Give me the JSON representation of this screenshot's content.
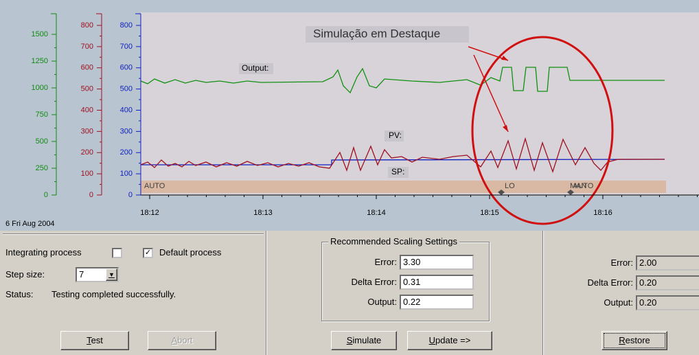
{
  "chart": {
    "title": "Simulação em Destaque",
    "date": "6 Fri Aug 2004",
    "axes": [
      {
        "color": "#108a10",
        "ticks": [
          0,
          250,
          500,
          750,
          1000,
          1250,
          1500
        ],
        "max": 1500
      },
      {
        "color": "#a01020",
        "ticks": [
          0,
          100,
          200,
          300,
          400,
          500,
          600,
          700,
          800
        ],
        "max": 800
      },
      {
        "color": "#1020c0",
        "ticks": [
          0,
          100,
          200,
          300,
          400,
          500,
          600,
          700,
          800
        ],
        "max": 800
      }
    ],
    "time_labels": [
      "18:12",
      "18:13",
      "18:14",
      "18:15",
      "18:16"
    ],
    "trace_labels": {
      "output": "Output:",
      "pv": "PV:",
      "sp": "SP:"
    },
    "modes": [
      "AUTO",
      "LO",
      "MAN",
      "AUTO"
    ]
  },
  "left_panel": {
    "integrating": "Integrating process",
    "default": "Default process",
    "step_label": "Step size:",
    "step_value": "7",
    "status_label": "Status:",
    "status_value": "Testing completed successfully.",
    "test": "Test",
    "abort": "Abort"
  },
  "middle_panel": {
    "title": "Recommended Scaling Settings",
    "rows": [
      [
        "Error:",
        "3.30"
      ],
      [
        "Delta Error:",
        "0.31"
      ],
      [
        "Output:",
        "0.22"
      ]
    ],
    "simulate": "Simulate",
    "update": "Update =>"
  },
  "right_panel": {
    "rows": [
      [
        "Error:",
        "2.00"
      ],
      [
        "Delta Error:",
        "0.20"
      ],
      [
        "Output:",
        "0.20"
      ]
    ],
    "restore": "Restore"
  }
}
